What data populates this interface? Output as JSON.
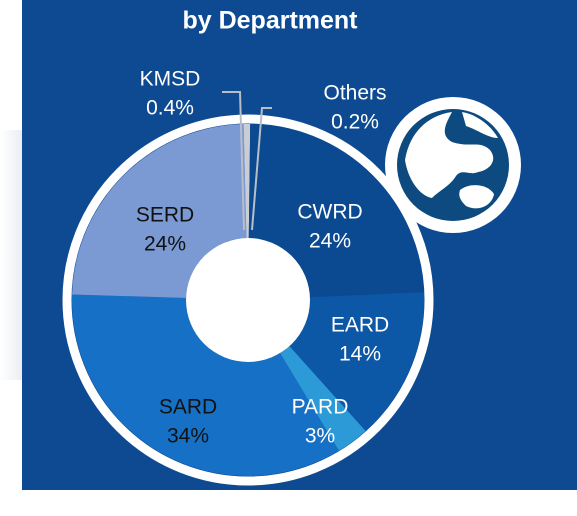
{
  "chart_data": {
    "type": "donut",
    "title": "by Department",
    "categories": [
      "Others",
      "CWRD",
      "EARD",
      "PARD",
      "SARD",
      "SERD",
      "KMSD"
    ],
    "values": [
      0.2,
      24,
      14,
      3,
      34,
      24,
      0.4
    ],
    "value_labels": [
      "0.2%",
      "24%",
      "14%",
      "3%",
      "34%",
      "24%",
      "0.4%"
    ],
    "colors": [
      "#c9ced6",
      "#0b4a90",
      "#0d58a6",
      "#2b9ad6",
      "#1570c6",
      "#7b99d3",
      "#c9ced6"
    ]
  }
}
